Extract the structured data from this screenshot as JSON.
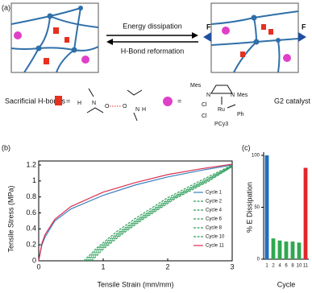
{
  "diagram": {
    "panel_label": "(a)",
    "arrow_top": "Energy dissipation",
    "arrow_bottom": "H-Bond reformation",
    "force_left": "F",
    "force_right": "F",
    "hbond_label": "Sacrificial H-bonds",
    "equals": "=",
    "atoms": [
      "H",
      "N",
      "O",
      "O",
      "N",
      "H"
    ],
    "catalyst_atoms": [
      "Mes",
      "N",
      "N",
      "Mes",
      "Cl",
      "Ru",
      "Cl",
      "Ph",
      "PCy3"
    ],
    "catalyst_label": "G2 catalyst"
  },
  "chart_data": [
    {
      "type": "line",
      "panel_label": "(b)",
      "xlabel": "Tensile Strain (mm/mm)",
      "ylabel": "Tensile Stress (MPa)",
      "xlim": [
        0,
        3
      ],
      "ylim": [
        0,
        1.25
      ],
      "xticks": [
        0,
        1,
        2,
        3
      ],
      "yticks": [
        0,
        0.2,
        0.4,
        0.6,
        0.8,
        1,
        1.2
      ],
      "legend": "lower right",
      "series": [
        {
          "name": "Cycle 1",
          "color": "#3b7fbf",
          "dashed": false,
          "x": [
            0,
            0.05,
            0.1,
            0.25,
            0.5,
            1,
            1.5,
            2,
            2.5,
            3
          ],
          "values": [
            0,
            0.2,
            0.3,
            0.5,
            0.65,
            0.82,
            0.95,
            1.05,
            1.13,
            1.2
          ]
        },
        {
          "name": "Cycle 2",
          "color": "#2e9e5b",
          "dashed": true,
          "x": [
            0.7,
            0.9,
            1.2,
            1.5,
            2,
            2.5,
            3
          ],
          "values": [
            0,
            0.16,
            0.36,
            0.53,
            0.79,
            1.0,
            1.2
          ]
        },
        {
          "name": "Cycle 4",
          "color": "#2e9e5b",
          "dashed": true,
          "x": [
            0.73,
            0.93,
            1.23,
            1.53,
            2.03,
            2.53,
            3
          ],
          "values": [
            0,
            0.16,
            0.35,
            0.52,
            0.78,
            0.99,
            1.19
          ]
        },
        {
          "name": "Cycle 6",
          "color": "#2e9e5b",
          "dashed": true,
          "x": [
            0.76,
            0.96,
            1.26,
            1.56,
            2.06,
            2.56,
            3
          ],
          "values": [
            0,
            0.16,
            0.35,
            0.52,
            0.78,
            0.99,
            1.19
          ]
        },
        {
          "name": "Cycle 8",
          "color": "#2e9e5b",
          "dashed": true,
          "x": [
            0.79,
            0.99,
            1.29,
            1.59,
            2.09,
            2.59,
            3
          ],
          "values": [
            0,
            0.16,
            0.35,
            0.52,
            0.78,
            0.99,
            1.18
          ]
        },
        {
          "name": "Cycle 10",
          "color": "#2e9e5b",
          "dashed": true,
          "x": [
            0.82,
            1.02,
            1.32,
            1.62,
            2.12,
            2.62,
            3
          ],
          "values": [
            0,
            0.16,
            0.35,
            0.52,
            0.78,
            0.99,
            1.18
          ]
        },
        {
          "name": "Cycle 11",
          "color": "#d9304f",
          "dashed": false,
          "x": [
            0,
            0.05,
            0.1,
            0.25,
            0.5,
            1,
            1.5,
            2,
            2.5,
            3
          ],
          "values": [
            0,
            0.22,
            0.33,
            0.52,
            0.68,
            0.86,
            0.98,
            1.08,
            1.15,
            1.21
          ]
        }
      ]
    },
    {
      "type": "bar",
      "panel_label": "(c)",
      "xlabel": "Cycle",
      "ylabel": "% E Dissipation",
      "categories": [
        "1",
        "2",
        "4",
        "6",
        "8",
        "10",
        "11"
      ],
      "values": [
        100,
        20,
        18,
        17,
        17,
        16,
        88
      ],
      "colors": [
        "#1f6fc0",
        "#2fa84f",
        "#2fa84f",
        "#2fa84f",
        "#2fa84f",
        "#2fa84f",
        "#e3262b"
      ],
      "ylim": [
        0,
        100
      ],
      "yticks": [
        0,
        50,
        100
      ]
    }
  ]
}
